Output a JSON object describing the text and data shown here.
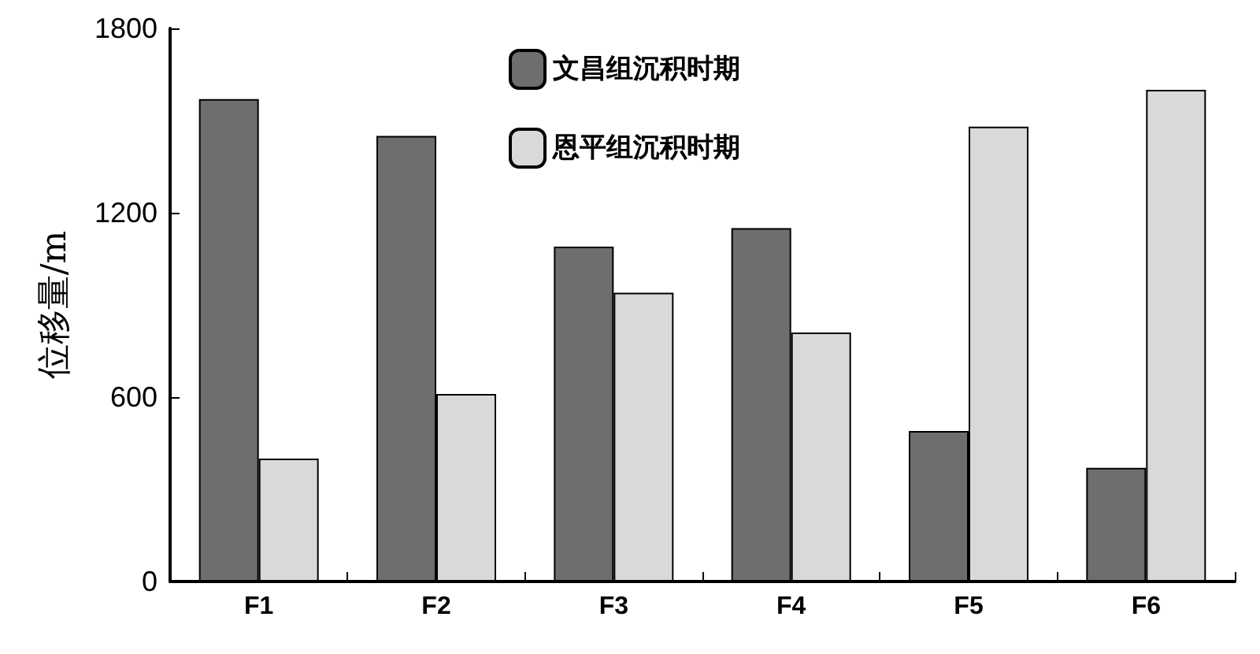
{
  "chart_data": {
    "type": "bar",
    "categories": [
      "F1",
      "F2",
      "F3",
      "F4",
      "F5",
      "F6"
    ],
    "ylabel": "位移量/m",
    "ylim": [
      0,
      1800
    ],
    "yticks": [
      0,
      600,
      1200,
      1800
    ],
    "grid": false,
    "legend": "top",
    "series": [
      {
        "name": "文昌组沉积时期",
        "color": "#6e6e6e",
        "values": [
          1570,
          1450,
          1090,
          1150,
          490,
          370
        ]
      },
      {
        "name": "恩平组沉积时期",
        "color": "#d9d9d9",
        "values": [
          400,
          610,
          940,
          810,
          1480,
          1600
        ]
      }
    ]
  }
}
